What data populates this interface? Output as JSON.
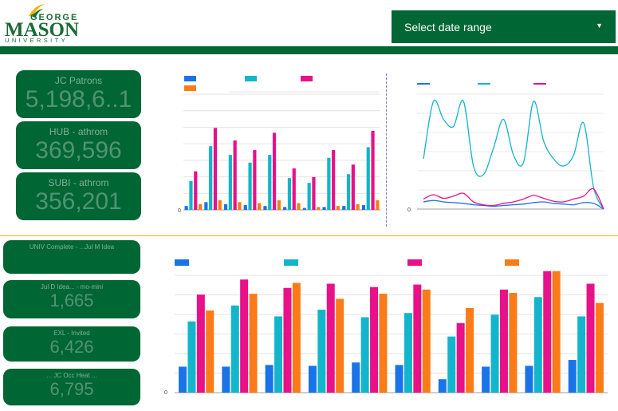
{
  "header": {
    "logo": {
      "george": "GEORGE",
      "mason": "MASON",
      "university": "UNIVERSITY"
    },
    "date_range_label": "Select date range"
  },
  "kpis_top": [
    {
      "label": "JC Patrons",
      "value": "5,198,6..1"
    },
    {
      "label": "HUB - athrom",
      "value": "369,596"
    },
    {
      "label": "SUBI - athrom",
      "value": "356,201"
    }
  ],
  "kpis_bottom": [
    {
      "label": "UNIV Complete - ...Jul M Idea",
      "value": ""
    },
    {
      "label": "Jul D Idea... - mo-mini",
      "value": "1,665"
    },
    {
      "label": "EXL - Invited",
      "value": "6,426"
    },
    {
      "label": "... JC Occ Heat ...",
      "value": "6,795"
    }
  ],
  "colors": {
    "blue": "#1a73e8",
    "teal": "#12b5cb",
    "pink": "#e8118a",
    "orange": "#fa7b17",
    "green": "#006633",
    "gold": "#f2b705"
  },
  "chart_data": [
    {
      "type": "bar",
      "ylim": [
        0,
        120
      ],
      "yticks": [
        "0"
      ],
      "series": [
        {
          "values": [
            4,
            8,
            6,
            5,
            4,
            3,
            2,
            3,
            4,
            5
          ]
        },
        {
          "values": [
            30,
            66,
            57,
            49,
            57,
            33,
            28,
            54,
            37,
            65
          ]
        },
        {
          "values": [
            40,
            85,
            72,
            62,
            80,
            43,
            34,
            62,
            47,
            82
          ]
        },
        {
          "values": [
            6,
            10,
            8,
            7,
            10,
            7,
            3,
            4,
            6,
            10
          ]
        }
      ]
    },
    {
      "type": "line",
      "ylim": [
        0,
        160
      ],
      "yticks": [
        "0"
      ],
      "series": [
        {
          "values": [
            10,
            12,
            10,
            9,
            8,
            6,
            5,
            4,
            5,
            6,
            7,
            9,
            10,
            8,
            7,
            6,
            9,
            8,
            0
          ]
        },
        {
          "values": [
            70,
            150,
            125,
            115,
            150,
            60,
            48,
            85,
            125,
            75,
            65,
            150,
            95,
            70,
            60,
            75,
            120,
            30,
            0
          ]
        },
        {
          "values": [
            14,
            20,
            15,
            18,
            22,
            10,
            6,
            5,
            8,
            10,
            14,
            19,
            15,
            11,
            10,
            14,
            18,
            28,
            0
          ]
        }
      ]
    },
    {
      "type": "bar",
      "ylim": [
        0,
        140
      ],
      "yticks": [
        "0"
      ],
      "series": [
        {
          "values": [
            31,
            31,
            33,
            32,
            36,
            33,
            16,
            31,
            32,
            39
          ]
        },
        {
          "values": [
            85,
            104,
            91,
            99,
            90,
            95,
            67,
            93,
            114,
            91
          ]
        },
        {
          "values": [
            117,
            135,
            125,
            130,
            126,
            129,
            83,
            123,
            145,
            130
          ]
        },
        {
          "values": [
            98,
            118,
            131,
            112,
            118,
            123,
            101,
            119,
            145,
            107
          ]
        }
      ]
    }
  ]
}
